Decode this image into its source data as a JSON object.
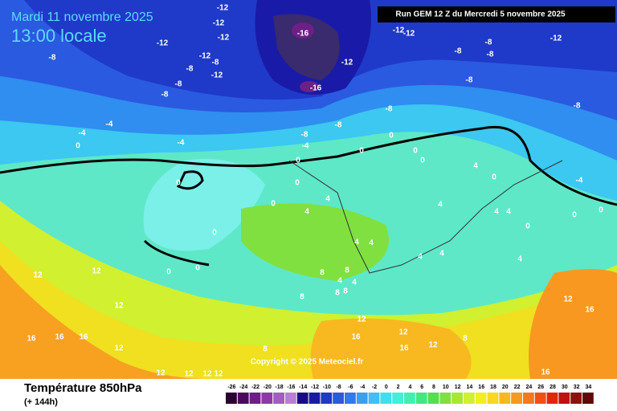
{
  "header": {
    "date": "Mardi 11 novembre 2025",
    "time": "13:00 locale",
    "run": "Run GEM 12 Z du Mercredi 5 novembre 2025"
  },
  "footer": {
    "title": "Température 850hPa",
    "subtitle": "(+ 144h)",
    "copyright": "Copyright © 2025 Meteociel.fr"
  },
  "legend": {
    "values": [
      -26,
      -24,
      -22,
      -20,
      -18,
      -16,
      -14,
      -12,
      -10,
      -8,
      -6,
      -4,
      -2,
      0,
      2,
      4,
      6,
      8,
      10,
      12,
      14,
      16,
      18,
      20,
      22,
      24,
      26,
      28,
      30,
      32,
      34
    ],
    "colors": [
      "#2a0030",
      "#4b0a5e",
      "#6e1f86",
      "#8d3aa5",
      "#a35cc0",
      "#b87fd4",
      "#1a0a8a",
      "#1a1aa8",
      "#1f3ac8",
      "#2a5ae0",
      "#2f7af0",
      "#36a0f5",
      "#3cc0f5",
      "#3ee0f0",
      "#40f0d8",
      "#40f0b0",
      "#40e880",
      "#50e050",
      "#80e040",
      "#a8e830",
      "#d0f030",
      "#f0f020",
      "#f8d820",
      "#f8b820",
      "#f89820",
      "#f87818",
      "#f05010",
      "#e02808",
      "#c01010",
      "#901010",
      "#600808"
    ]
  },
  "map": {
    "labels": [
      -12,
      -12,
      -12,
      -12,
      -16,
      -12,
      -12,
      -8,
      -8,
      -8,
      -12,
      -8,
      -12,
      -8,
      -8,
      -12,
      -12,
      -8,
      -8,
      -16,
      -8,
      -8,
      -8,
      -4,
      -4,
      0,
      -8,
      -8,
      -4,
      -4,
      0,
      0,
      0,
      0,
      0,
      0,
      0,
      4,
      0,
      -4,
      4,
      4,
      0,
      0,
      4,
      4,
      4,
      0,
      0,
      0,
      4,
      4,
      4,
      4,
      4,
      0,
      0,
      8,
      8,
      4,
      4,
      8,
      8,
      8,
      12,
      12,
      12,
      12,
      16,
      12,
      16,
      16,
      16,
      12,
      12,
      12,
      16,
      16,
      8,
      8,
      12,
      12,
      12,
      12,
      16
    ]
  }
}
